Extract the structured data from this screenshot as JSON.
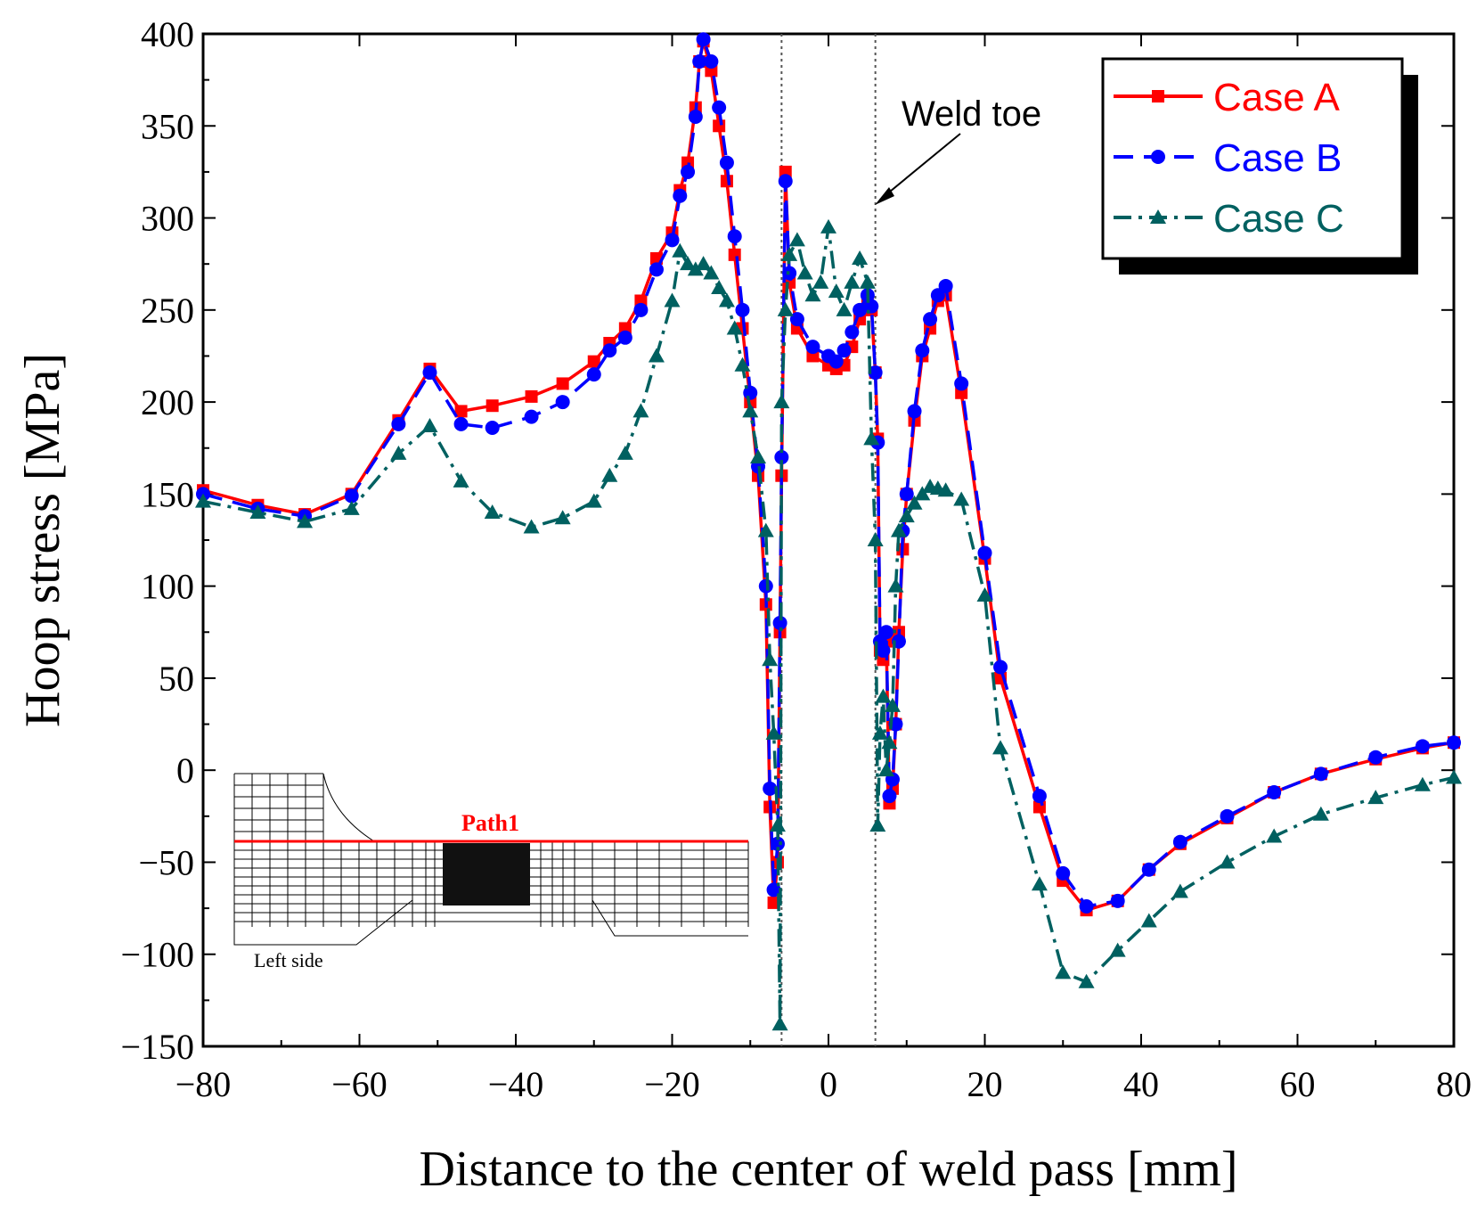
{
  "chart_data": {
    "type": "line",
    "xlabel": "Distance to the center of weld pass [mm]",
    "ylabel": "Hoop stress [MPa]",
    "xlim": [
      -80,
      80
    ],
    "ylim": [
      -150,
      400
    ],
    "xticks": [
      -80,
      -60,
      -40,
      -20,
      0,
      20,
      40,
      60,
      80
    ],
    "yticks": [
      -150,
      -100,
      -50,
      0,
      50,
      100,
      150,
      200,
      250,
      300,
      350,
      400
    ],
    "xtick_labels": [
      "−80",
      "−60",
      "−40",
      "−20",
      "0",
      "20",
      "40",
      "60",
      "80"
    ],
    "ytick_labels": [
      "−150",
      "−100",
      "−50",
      "0",
      "50",
      "100",
      "150",
      "200",
      "250",
      "300",
      "350",
      "400"
    ],
    "legend_position": "top-right",
    "grid": false,
    "vertical_reference_lines": [
      -6,
      6
    ],
    "annotation": {
      "text": "Weld toe",
      "target_x": 6,
      "target_y": 300
    },
    "inset": {
      "path_label": "Path1",
      "side_label": "Left side"
    },
    "series": [
      {
        "name": "Case A",
        "color": "#ff0000",
        "line_style": "solid",
        "marker": "square",
        "x": [
          -80,
          -73,
          -67,
          -61,
          -55,
          -51,
          -47,
          -43,
          -38,
          -34,
          -30,
          -28,
          -26,
          -24,
          -22,
          -20,
          -19,
          -18,
          -17,
          -16.5,
          -16,
          -15,
          -14,
          -13,
          -12,
          -11,
          -10,
          -9,
          -8,
          -7.5,
          -7,
          -6.5,
          -6.2,
          -6,
          -5.5,
          -5,
          -4,
          -2,
          0,
          1,
          2,
          3,
          4,
          5,
          5.5,
          6,
          6.3,
          6.6,
          7,
          7.4,
          7.8,
          8.2,
          8.6,
          9,
          9.5,
          10,
          11,
          12,
          13,
          14,
          15,
          17,
          20,
          22,
          27,
          30,
          33,
          37,
          41,
          45,
          51,
          57,
          63,
          70,
          76,
          80
        ],
        "values": [
          152,
          144,
          139,
          150,
          190,
          218,
          195,
          198,
          203,
          210,
          222,
          232,
          240,
          255,
          278,
          292,
          315,
          330,
          360,
          385,
          396,
          380,
          350,
          320,
          280,
          240,
          200,
          160,
          90,
          -20,
          -72,
          -50,
          75,
          160,
          325,
          265,
          240,
          225,
          220,
          218,
          220,
          230,
          245,
          255,
          250,
          216,
          180,
          65,
          60,
          70,
          -18,
          -10,
          25,
          75,
          120,
          150,
          190,
          225,
          240,
          255,
          258,
          205,
          115,
          50,
          -20,
          -60,
          -76,
          -71,
          -54,
          -40,
          -26,
          -12,
          -2,
          6,
          12,
          15
        ]
      },
      {
        "name": "Case B",
        "color": "#0000ff",
        "line_style": "dashed",
        "marker": "circle",
        "x": [
          -80,
          -73,
          -67,
          -61,
          -55,
          -51,
          -47,
          -43,
          -38,
          -34,
          -30,
          -28,
          -26,
          -24,
          -22,
          -20,
          -19,
          -18,
          -17,
          -16.5,
          -16,
          -15,
          -14,
          -13,
          -12,
          -11,
          -10,
          -9,
          -8,
          -7.5,
          -7,
          -6.5,
          -6.2,
          -6,
          -5.5,
          -5,
          -4,
          -2,
          0,
          1,
          2,
          3,
          4,
          5,
          5.5,
          6,
          6.3,
          6.6,
          7,
          7.4,
          7.8,
          8.2,
          8.6,
          9,
          9.5,
          10,
          11,
          12,
          13,
          14,
          15,
          17,
          20,
          22,
          27,
          30,
          33,
          37,
          41,
          45,
          51,
          57,
          63,
          70,
          76,
          80
        ],
        "values": [
          150,
          142,
          138,
          149,
          188,
          216,
          188,
          186,
          192,
          200,
          215,
          228,
          235,
          250,
          272,
          288,
          312,
          325,
          355,
          385,
          397,
          385,
          360,
          330,
          290,
          250,
          205,
          165,
          100,
          -10,
          -65,
          -40,
          80,
          170,
          320,
          270,
          245,
          230,
          225,
          222,
          228,
          238,
          250,
          258,
          252,
          216,
          178,
          70,
          65,
          75,
          -14,
          -5,
          25,
          70,
          130,
          150,
          195,
          228,
          245,
          258,
          263,
          210,
          118,
          56,
          -14,
          -56,
          -74,
          -71,
          -54,
          -39,
          -25,
          -12,
          -2,
          7,
          13,
          15
        ]
      },
      {
        "name": "Case C",
        "color": "#006060",
        "line_style": "dashdot",
        "marker": "triangle",
        "x": [
          -80,
          -73,
          -67,
          -61,
          -55,
          -51,
          -47,
          -43,
          -38,
          -34,
          -30,
          -28,
          -26,
          -24,
          -22,
          -20,
          -19,
          -18,
          -17,
          -16,
          -15,
          -14,
          -13,
          -12,
          -11,
          -10,
          -9,
          -8,
          -7.5,
          -7,
          -6.5,
          -6.2,
          -6,
          -5.5,
          -5,
          -4,
          -3,
          -2,
          -1,
          0,
          1,
          2,
          3,
          4,
          5,
          5.5,
          6,
          6.3,
          6.6,
          7,
          7.4,
          7.8,
          8.2,
          8.6,
          9,
          10,
          11,
          12,
          13,
          14,
          15,
          17,
          20,
          22,
          27,
          30,
          33,
          37,
          41,
          45,
          51,
          57,
          63,
          70,
          76,
          80
        ],
        "values": [
          146,
          140,
          135,
          142,
          172,
          187,
          157,
          140,
          132,
          137,
          146,
          160,
          172,
          195,
          225,
          255,
          282,
          275,
          272,
          275,
          270,
          262,
          255,
          240,
          220,
          195,
          170,
          130,
          60,
          20,
          -30,
          -138,
          200,
          250,
          280,
          288,
          270,
          258,
          265,
          295,
          260,
          250,
          265,
          278,
          265,
          180,
          125,
          -30,
          20,
          40,
          0,
          15,
          35,
          100,
          130,
          138,
          145,
          150,
          154,
          153,
          152,
          147,
          95,
          12,
          -62,
          -110,
          -115,
          -98,
          -82,
          -66,
          -50,
          -36,
          -24,
          -15,
          -8,
          -4
        ]
      }
    ]
  }
}
